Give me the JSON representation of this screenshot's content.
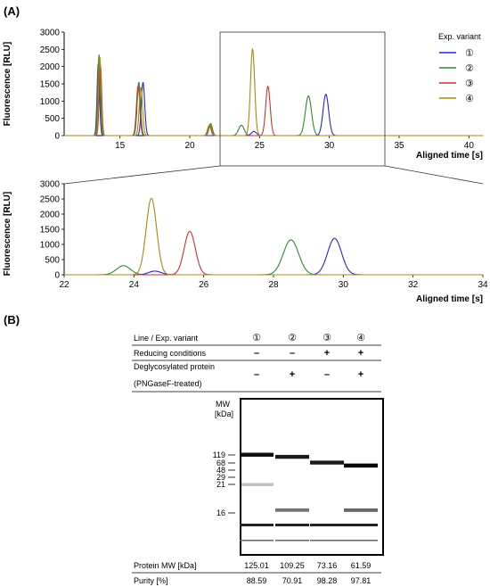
{
  "panel_labels": [
    "(A)",
    "(B)"
  ],
  "chart_data": [
    {
      "type": "line",
      "id": "top",
      "xlim": [
        11,
        41
      ],
      "ylim": [
        0,
        3000
      ],
      "xticks": [
        15,
        20,
        25,
        30,
        35,
        40
      ],
      "yticks": [
        0,
        500,
        1000,
        1500,
        2000,
        2500,
        3000
      ],
      "xlabel": "Aligned time [s]",
      "ylabel": "Fluorescence [RLU]",
      "legend_title": "Exp. variant",
      "legend_position": "right",
      "series": [
        {
          "name": "①",
          "color": "#2727c8",
          "peaks": [
            [
              13.45,
              2100,
              0.09
            ],
            [
              16.65,
              1550,
              0.12
            ],
            [
              24.6,
              120,
              0.18
            ],
            [
              29.75,
              1200,
              0.2
            ]
          ]
        },
        {
          "name": "②",
          "color": "#2f8a2f",
          "peaks": [
            [
              13.5,
              2350,
              0.09
            ],
            [
              16.35,
              1550,
              0.12
            ],
            [
              21.5,
              350,
              0.12
            ],
            [
              23.7,
              300,
              0.2
            ],
            [
              28.5,
              1150,
              0.22
            ]
          ]
        },
        {
          "name": "③",
          "color": "#c83232",
          "peaks": [
            [
              13.6,
              2050,
              0.09
            ],
            [
              16.3,
              1450,
              0.12
            ],
            [
              21.4,
              300,
              0.12
            ],
            [
              25.6,
              1430,
              0.16
            ]
          ]
        },
        {
          "name": "④",
          "color": "#a88a12",
          "peaks": [
            [
              13.55,
              2300,
              0.09
            ],
            [
              16.5,
              1400,
              0.12
            ],
            [
              21.45,
              330,
              0.12
            ],
            [
              24.5,
              2520,
              0.15
            ]
          ]
        }
      ]
    },
    {
      "type": "line",
      "id": "bottom",
      "xlim": [
        22,
        34
      ],
      "ylim": [
        0,
        3000
      ],
      "xticks": [
        22,
        24,
        26,
        28,
        30,
        32,
        34
      ],
      "yticks": [
        0,
        500,
        1000,
        1500,
        2000,
        2500,
        3000
      ],
      "xlabel": "Aligned time [s]",
      "ylabel": "Fluorescence [RLU]"
    }
  ],
  "gel": {
    "header_label": "Line / Exp. variant",
    "lanes": [
      "①",
      "②",
      "③",
      "④"
    ],
    "conditions": [
      {
        "label": "Reducing conditions",
        "values": [
          "–",
          "–",
          "+",
          "+"
        ]
      },
      {
        "label": "Deglycosylated protein",
        "label2": "(PNGaseF-treated)",
        "values": [
          "–",
          "+",
          "–",
          "+"
        ]
      }
    ],
    "mw_header": "MW",
    "mw_unit": "[kDa]",
    "ladder": [
      "119",
      "68",
      "48",
      "29",
      "21",
      "16"
    ],
    "ladder_kda": [
      119,
      68,
      48,
      29,
      21,
      16
    ],
    "lane_bands_kda": [
      [
        [
          125,
          0.95
        ],
        [
          21,
          0.25
        ]
      ],
      [
        [
          109,
          0.9
        ],
        [
          16.5,
          0.55
        ]
      ],
      [
        [
          73,
          0.9
        ]
      ],
      [
        [
          62,
          1.0
        ],
        [
          16.5,
          0.6
        ]
      ]
    ],
    "protein_mw_label": "Protein MW [kDa]",
    "protein_mw": [
      "125.01",
      "109.25",
      "73.16",
      "61.59"
    ],
    "purity_label": "Purity [%]",
    "purity": [
      "88.59",
      "70.91",
      "98.28",
      "97.81"
    ]
  }
}
